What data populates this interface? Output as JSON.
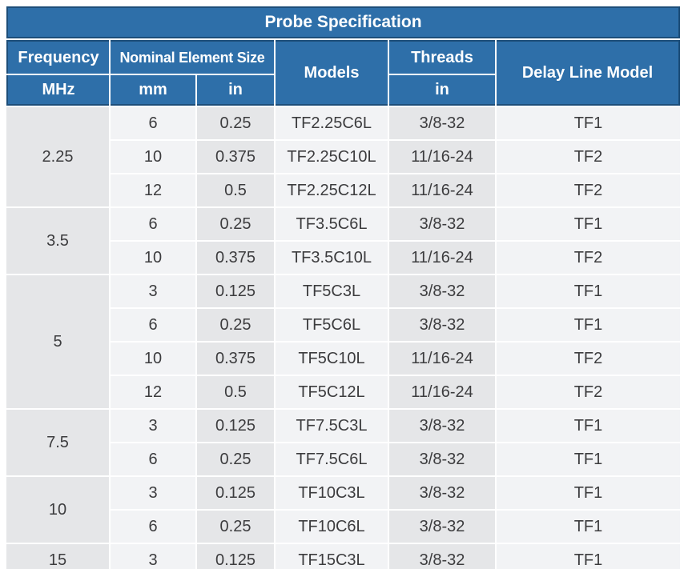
{
  "table": {
    "title": "Probe Specification",
    "header": {
      "frequency": {
        "label": "Frequency",
        "unit": "MHz"
      },
      "nominal_element_size": {
        "label": "Nominal Element Size",
        "units": [
          "mm",
          "in"
        ]
      },
      "models": {
        "label": "Models"
      },
      "threads": {
        "label": "Threads",
        "unit": "in"
      },
      "delay_line_model": {
        "label": "Delay Line Model"
      }
    },
    "groups": [
      {
        "frequency": "2.25",
        "rows": [
          [
            "6",
            "0.25",
            "TF2.25C6L",
            "3/8-32",
            "TF1"
          ],
          [
            "10",
            "0.375",
            "TF2.25C10L",
            "11/16-24",
            "TF2"
          ],
          [
            "12",
            "0.5",
            "TF2.25C12L",
            "11/16-24",
            "TF2"
          ]
        ]
      },
      {
        "frequency": "3.5",
        "rows": [
          [
            "6",
            "0.25",
            "TF3.5C6L",
            "3/8-32",
            "TF1"
          ],
          [
            "10",
            "0.375",
            "TF3.5C10L",
            "11/16-24",
            "TF2"
          ]
        ]
      },
      {
        "frequency": "5",
        "rows": [
          [
            "3",
            "0.125",
            "TF5C3L",
            "3/8-32",
            "TF1"
          ],
          [
            "6",
            "0.25",
            "TF5C6L",
            "3/8-32",
            "TF1"
          ],
          [
            "10",
            "0.375",
            "TF5C10L",
            "11/16-24",
            "TF2"
          ],
          [
            "12",
            "0.5",
            "TF5C12L",
            "11/16-24",
            "TF2"
          ]
        ]
      },
      {
        "frequency": "7.5",
        "rows": [
          [
            "3",
            "0.125",
            "TF7.5C3L",
            "3/8-32",
            "TF1"
          ],
          [
            "6",
            "0.25",
            "TF7.5C6L",
            "3/8-32",
            "TF1"
          ]
        ]
      },
      {
        "frequency": "10",
        "rows": [
          [
            "3",
            "0.125",
            "TF10C3L",
            "3/8-32",
            "TF1"
          ],
          [
            "6",
            "0.25",
            "TF10C6L",
            "3/8-32",
            "TF1"
          ]
        ]
      },
      {
        "frequency": "15",
        "rows": [
          [
            "3",
            "0.125",
            "TF15C3L",
            "3/8-32",
            "TF1"
          ]
        ]
      }
    ],
    "colors": {
      "header_blue": "#2e6fa9",
      "header_outline": "#1d4e79",
      "header_text": "#ffffff",
      "cell_gray": "#e5e6e8",
      "cell_light": "#f2f3f5",
      "body_text": "#3c3c3e",
      "page_background": "#ffffff"
    }
  }
}
